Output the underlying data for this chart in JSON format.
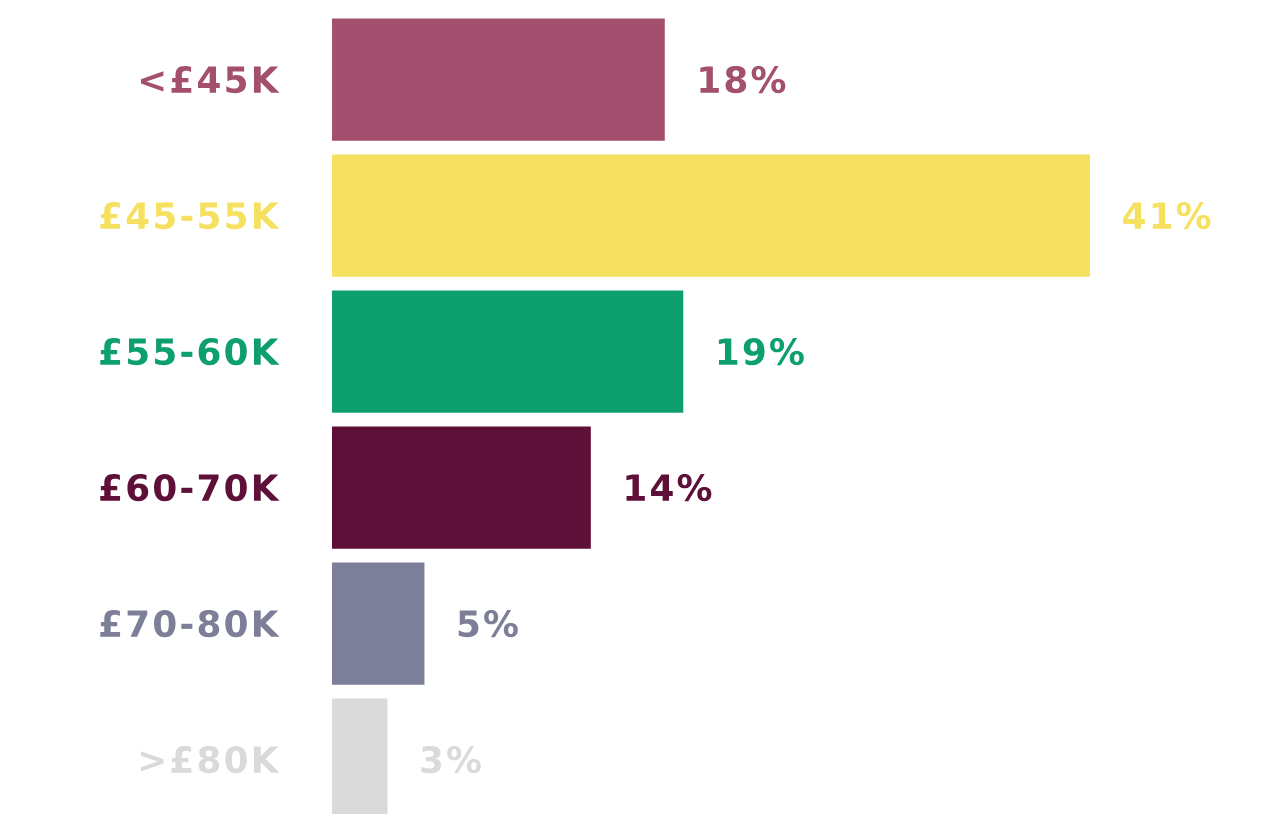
{
  "chart_data": {
    "type": "bar",
    "orientation": "horizontal",
    "categories": [
      "<£45K",
      "£45-55K",
      "£55-60K",
      "£60-70K",
      "£70-80K",
      ">£80K"
    ],
    "values": [
      18,
      41,
      19,
      14,
      5,
      3
    ],
    "value_labels": [
      "18%",
      "41%",
      "19%",
      "14%",
      "5%",
      "3%"
    ],
    "colors": [
      "#a34f6e",
      "#f5e15f",
      "#0e9f6e",
      "#5e1038",
      "#7d7f98",
      "#d9dad9"
    ]
  }
}
